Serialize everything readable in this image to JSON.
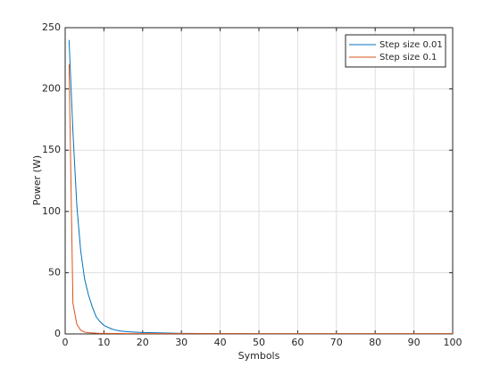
{
  "chart_data": {
    "type": "line",
    "x": [
      1,
      2,
      3,
      4,
      5,
      6,
      7,
      8,
      9,
      10,
      12,
      14,
      16,
      18,
      20,
      30,
      40,
      50,
      60,
      70,
      80,
      90,
      100
    ],
    "series": [
      {
        "name": "Step size 0.01",
        "color": "#0072bd",
        "values": [
          240,
          165,
          105,
          68,
          45,
          32,
          22,
          14,
          10,
          7,
          4,
          2.5,
          1.8,
          1.5,
          1.2,
          0.5,
          0.3,
          0.2,
          0.2,
          0.2,
          0.2,
          0.2,
          0.2
        ]
      },
      {
        "name": "Step size 0.1",
        "color": "#d95319",
        "values": [
          220,
          25,
          8,
          3,
          1.5,
          1,
          0.8,
          0.6,
          0.5,
          0.5,
          0.4,
          0.4,
          0.3,
          0.3,
          0.3,
          0.3,
          0.3,
          0.3,
          0.3,
          0.3,
          0.3,
          0.3,
          0.3
        ]
      }
    ],
    "xlabel": "Symbols",
    "ylabel": "Power (W)",
    "xlim": [
      0,
      100
    ],
    "xticks": [
      0,
      10,
      20,
      30,
      40,
      50,
      60,
      70,
      80,
      90,
      100
    ],
    "ylim": [
      0,
      250
    ],
    "yticks": [
      0,
      50,
      100,
      150,
      200,
      250
    ],
    "grid": true,
    "legend": "northeast"
  }
}
